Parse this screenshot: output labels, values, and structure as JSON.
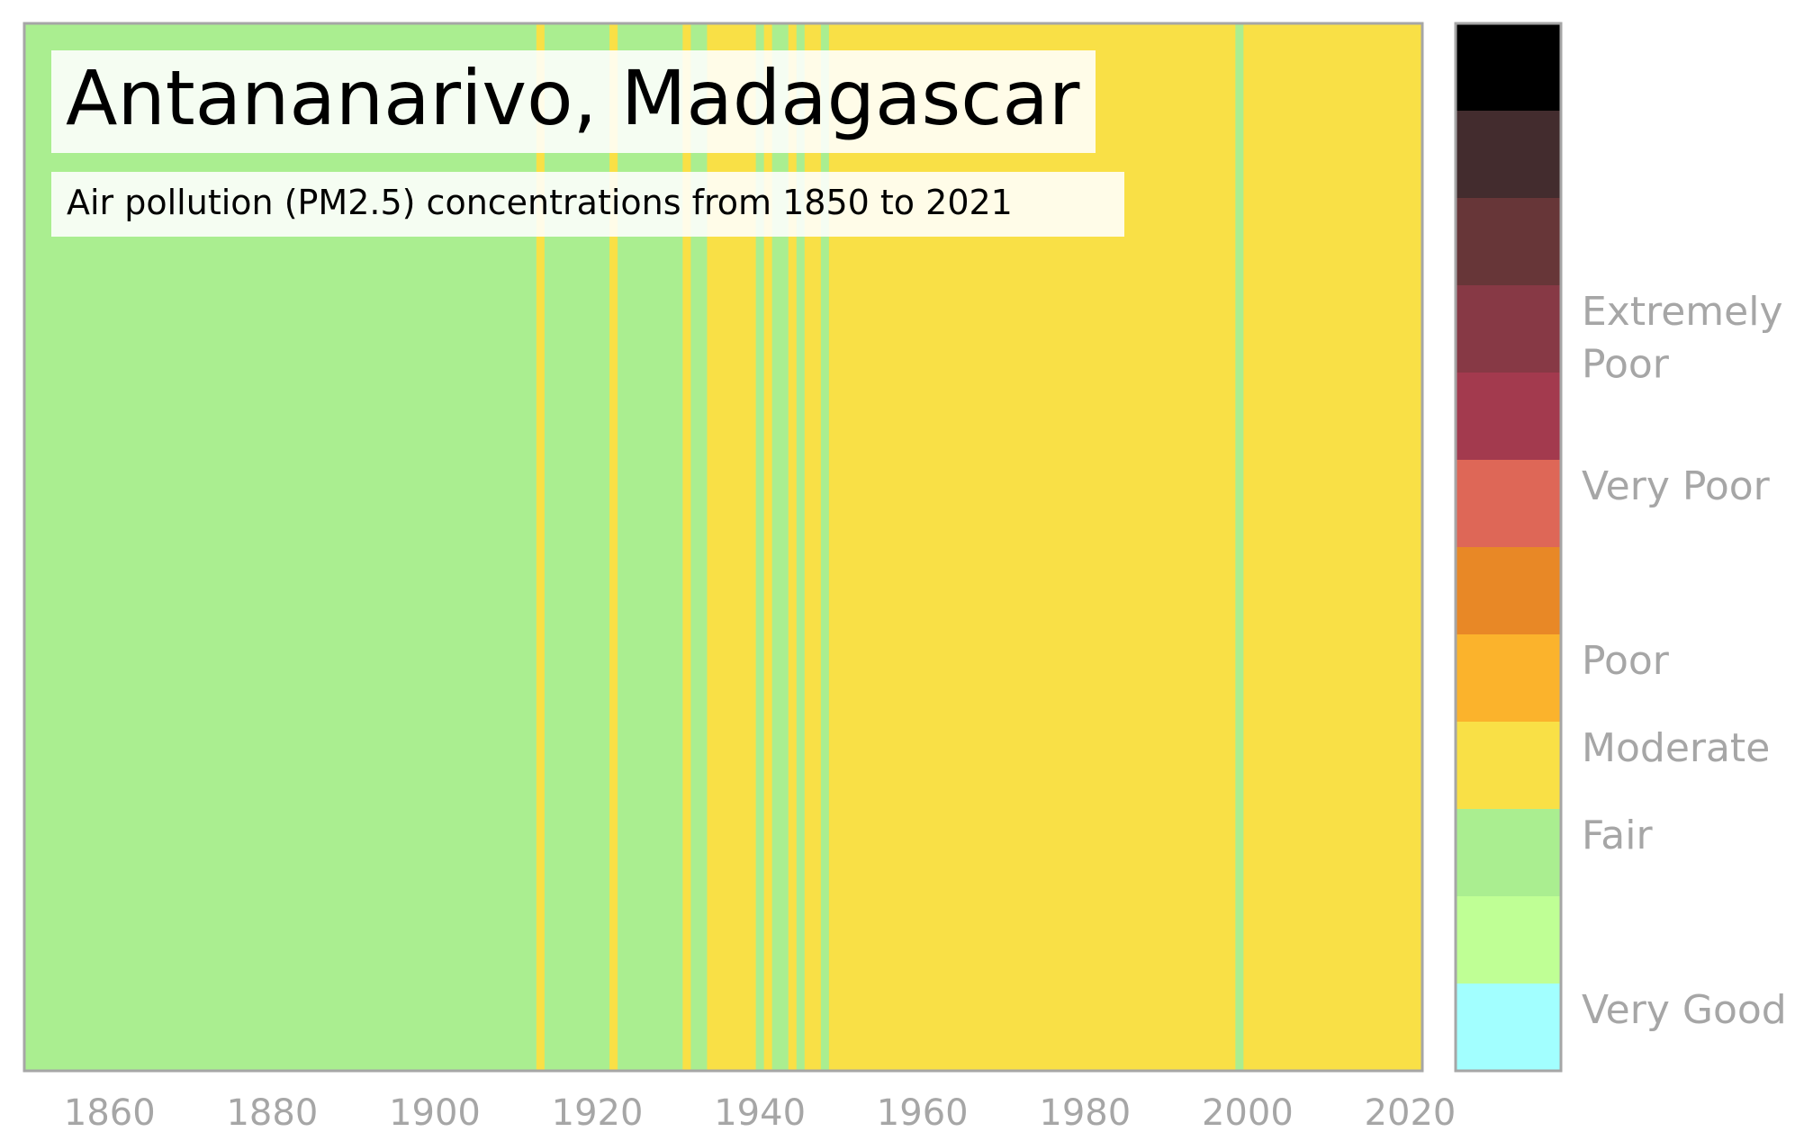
{
  "chart_data": {
    "type": "heatmap",
    "title": "Antananarivo, Madagascar",
    "subtitle": "Air pollution (PM2.5) concentrations from 1850 to 2021",
    "x_range": [
      1850,
      2021
    ],
    "x_ticks": [
      "1860",
      "1880",
      "1900",
      "1920",
      "1940",
      "1960",
      "1980",
      "2000",
      "2020"
    ],
    "category_colors": {
      "Fair": "#aaee90",
      "Moderate": "#f9e046"
    },
    "segments": [
      {
        "start": 1850,
        "end": 1913,
        "category": "Fair"
      },
      {
        "start": 1913,
        "end": 1914,
        "category": "Moderate"
      },
      {
        "start": 1914,
        "end": 1922,
        "category": "Fair"
      },
      {
        "start": 1922,
        "end": 1923,
        "category": "Moderate"
      },
      {
        "start": 1923,
        "end": 1931,
        "category": "Fair"
      },
      {
        "start": 1931,
        "end": 1932,
        "category": "Moderate"
      },
      {
        "start": 1932,
        "end": 1934,
        "category": "Fair"
      },
      {
        "start": 1934,
        "end": 1940,
        "category": "Moderate"
      },
      {
        "start": 1940,
        "end": 1941,
        "category": "Fair"
      },
      {
        "start": 1941,
        "end": 1942,
        "category": "Moderate"
      },
      {
        "start": 1942,
        "end": 1944,
        "category": "Fair"
      },
      {
        "start": 1944,
        "end": 1945,
        "category": "Moderate"
      },
      {
        "start": 1945,
        "end": 1946,
        "category": "Fair"
      },
      {
        "start": 1946,
        "end": 1948,
        "category": "Moderate"
      },
      {
        "start": 1948,
        "end": 1949,
        "category": "Fair"
      },
      {
        "start": 1949,
        "end": 1999,
        "category": "Moderate"
      },
      {
        "start": 1999,
        "end": 2000,
        "category": "Fair"
      },
      {
        "start": 2000,
        "end": 2022,
        "category": "Moderate"
      }
    ],
    "colorbar": {
      "colors_top_to_bottom": [
        "#000000",
        "#432c2e",
        "#673638",
        "#873945",
        "#a33a4e",
        "#de6757",
        "#e88826",
        "#fbb32c",
        "#f9e046",
        "#aaee90",
        "#bfff95",
        "#a2ffff"
      ],
      "labels": [
        {
          "text": "Extremely",
          "band": 3.3
        },
        {
          "text": "Poor",
          "band": 3.9
        },
        {
          "text": "Very Poor",
          "band": 5.3
        },
        {
          "text": "Poor",
          "band": 7.3
        },
        {
          "text": "Moderate",
          "band": 8.3
        },
        {
          "text": "Fair",
          "band": 9.3
        },
        {
          "text": "Very Good",
          "band": 11.3
        }
      ]
    },
    "legend": "right",
    "grid": false
  }
}
